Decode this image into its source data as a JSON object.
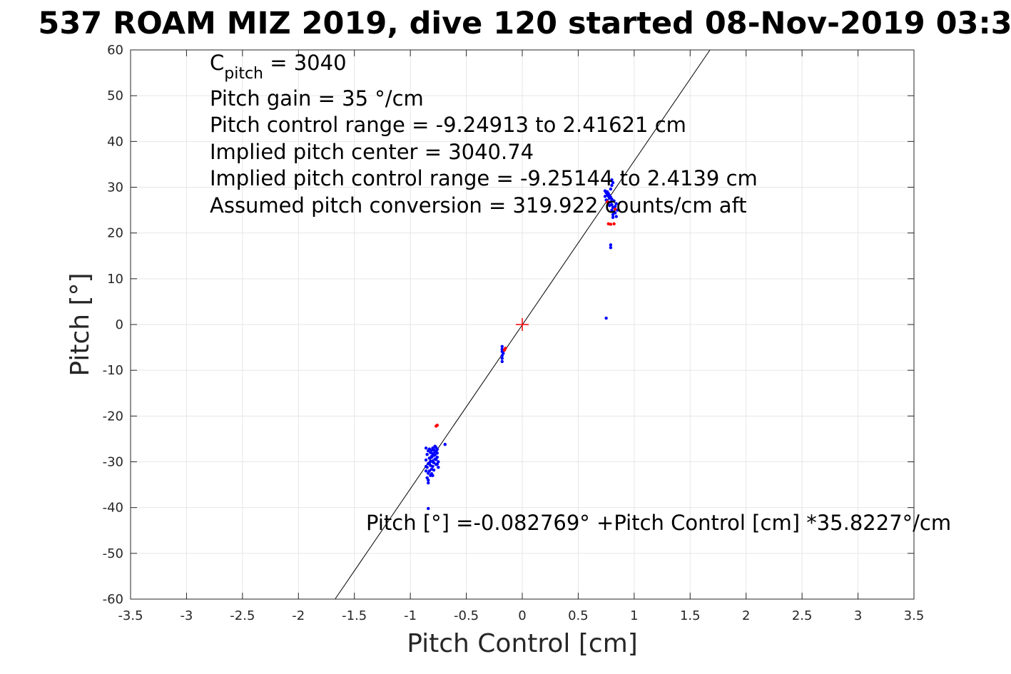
{
  "chart_data": {
    "type": "scatter",
    "title": "537 ROAM MIZ 2019, dive 120 started 08-Nov-2019 03:3",
    "xlabel": "Pitch Control [cm]",
    "ylabel": "Pitch [°]",
    "xlim": [
      -3.5,
      3.5
    ],
    "ylim": [
      -60,
      60
    ],
    "xticks": [
      -3.5,
      -3,
      -2.5,
      -2,
      -1.5,
      -1,
      -0.5,
      0,
      0.5,
      1,
      1.5,
      2,
      2.5,
      3,
      3.5
    ],
    "xtick_labels": [
      "-3.5",
      "-3",
      "-2.5",
      "-2",
      "-1.5",
      "-1",
      "-0.5",
      "0",
      "0.5",
      "1",
      "1.5",
      "2",
      "2.5",
      "3",
      "3.5"
    ],
    "yticks": [
      -60,
      -50,
      -40,
      -30,
      -20,
      -10,
      0,
      10,
      20,
      30,
      40,
      50,
      60
    ],
    "ytick_labels": [
      "-60",
      "-50",
      "-40",
      "-30",
      "-20",
      "-10",
      "0",
      "10",
      "20",
      "30",
      "40",
      "50",
      "60"
    ],
    "grid": true,
    "colors": {
      "blue": "#0000ff",
      "red": "#ff0000",
      "fit_line": "#000000",
      "grid": "#e6e6e6",
      "axes": "#262626"
    },
    "fit_line": {
      "intercept": -0.082769,
      "slope": 35.8227
    },
    "center_marker": {
      "x": 0,
      "y": 0,
      "color": "#ff0000",
      "marker": "plus"
    },
    "series": [
      {
        "color": "#0000ff",
        "points": [
          [
            -0.83,
            -27.2
          ],
          [
            -0.84,
            -27.6
          ],
          [
            -0.82,
            -28.0
          ],
          [
            -0.85,
            -28.4
          ],
          [
            -0.81,
            -28.8
          ],
          [
            -0.83,
            -29.2
          ],
          [
            -0.86,
            -29.6
          ],
          [
            -0.8,
            -30.0
          ],
          [
            -0.84,
            -30.4
          ],
          [
            -0.82,
            -30.8
          ],
          [
            -0.85,
            -31.2
          ],
          [
            -0.81,
            -31.6
          ],
          [
            -0.83,
            -32.0
          ],
          [
            -0.84,
            -32.5
          ],
          [
            -0.82,
            -33.0
          ],
          [
            -0.85,
            -33.5
          ],
          [
            -0.84,
            -34.0
          ],
          [
            -0.84,
            -34.6
          ],
          [
            -0.8,
            -27.0
          ],
          [
            -0.79,
            -27.4
          ],
          [
            -0.78,
            -27.8
          ],
          [
            -0.8,
            -28.2
          ],
          [
            -0.79,
            -28.6
          ],
          [
            -0.81,
            -29.0
          ],
          [
            -0.78,
            -29.4
          ],
          [
            -0.8,
            -29.8
          ],
          [
            -0.79,
            -30.2
          ],
          [
            -0.77,
            -30.6
          ],
          [
            -0.8,
            -31.0
          ],
          [
            -0.78,
            -26.6
          ],
          [
            -0.77,
            -26.9
          ],
          [
            -0.76,
            -27.3
          ],
          [
            -0.77,
            -27.7
          ],
          [
            -0.76,
            -28.1
          ],
          [
            -0.78,
            -28.5
          ],
          [
            -0.76,
            -29.0
          ],
          [
            -0.77,
            -29.5
          ],
          [
            -0.75,
            -30.0
          ],
          [
            -0.76,
            -30.5
          ],
          [
            -0.75,
            -31.2
          ],
          [
            -0.82,
            -29.9
          ],
          [
            -0.83,
            -30.3
          ],
          [
            -0.86,
            -27.0
          ],
          [
            -0.86,
            -31.0
          ],
          [
            -0.86,
            -32.0
          ],
          [
            -0.81,
            -32.6
          ],
          [
            -0.8,
            -33.0
          ],
          [
            -0.79,
            -31.8
          ],
          [
            -0.69,
            -26.2
          ],
          [
            -0.84,
            -40.2
          ],
          [
            -0.81,
            -27.5
          ],
          [
            -0.18,
            -4.8
          ],
          [
            -0.18,
            -5.4
          ],
          [
            -0.18,
            -5.9
          ],
          [
            -0.17,
            -6.3
          ],
          [
            -0.18,
            -6.8
          ],
          [
            -0.18,
            -7.4
          ],
          [
            -0.18,
            -8.1
          ],
          [
            0.74,
            29.2
          ],
          [
            0.75,
            28.8
          ],
          [
            0.76,
            28.4
          ],
          [
            0.77,
            28.0
          ],
          [
            0.78,
            27.6
          ],
          [
            0.75,
            27.2
          ],
          [
            0.76,
            29.0
          ],
          [
            0.77,
            28.6
          ],
          [
            0.78,
            28.2
          ],
          [
            0.79,
            27.8
          ],
          [
            0.74,
            28.0
          ],
          [
            0.8,
            27.4
          ],
          [
            0.79,
            26.8
          ],
          [
            0.8,
            26.2
          ],
          [
            0.81,
            25.6
          ],
          [
            0.8,
            25.0
          ],
          [
            0.82,
            24.6
          ],
          [
            0.81,
            24.0
          ],
          [
            0.83,
            25.8
          ],
          [
            0.84,
            26.4
          ],
          [
            0.83,
            24.4
          ],
          [
            0.84,
            23.6
          ],
          [
            0.81,
            23.4
          ],
          [
            0.79,
            29.6
          ],
          [
            0.8,
            30.4
          ],
          [
            0.81,
            31.0
          ],
          [
            0.8,
            31.6
          ],
          [
            0.76,
            27.0
          ],
          [
            0.77,
            26.6
          ],
          [
            0.78,
            26.0
          ],
          [
            0.82,
            27.0
          ],
          [
            0.85,
            25.0
          ],
          [
            0.79,
            17.4
          ],
          [
            0.79,
            16.8
          ],
          [
            0.75,
            1.4
          ]
        ]
      },
      {
        "color": "#ff0000",
        "points": [
          [
            -0.76,
            -22.0
          ],
          [
            -0.77,
            -22.2
          ],
          [
            -0.15,
            -5.2
          ],
          [
            -0.16,
            -5.6
          ],
          [
            0.77,
            22.0
          ],
          [
            0.79,
            21.9
          ],
          [
            0.82,
            22.0
          ],
          [
            0.83,
            25.2
          ],
          [
            0.76,
            26.8
          ]
        ]
      }
    ],
    "annotations": {
      "cpitch_main": "C",
      "cpitch_sub": "pitch",
      "cpitch_value": " = 3040",
      "line2": "Pitch gain = 35 °/cm",
      "line3": "Pitch control range = -9.24913 to 2.41621 cm",
      "line4": "Implied pitch center = 3040.74",
      "line5": "Implied pitch control range = -9.25144 to 2.4139 cm",
      "line6": "Assumed pitch conversion = 319.922 counts/cm aft",
      "fit_equation": "Pitch [°] =-0.082769° +Pitch Control [cm] *35.8227°/cm"
    }
  }
}
